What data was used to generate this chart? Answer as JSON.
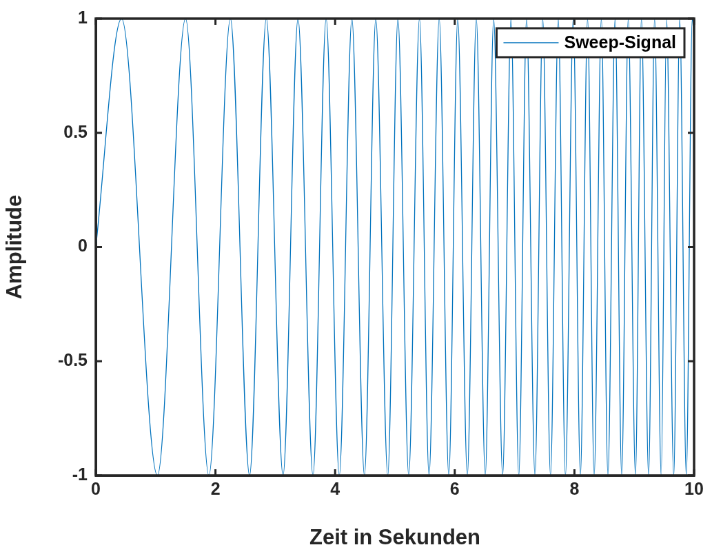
{
  "chart_data": {
    "type": "line",
    "xlabel": "Zeit in Sekunden",
    "ylabel": "Amplitude",
    "xlim": [
      0,
      10
    ],
    "xticks": [
      0,
      2,
      4,
      6,
      8,
      10
    ],
    "ylim": [
      -1,
      1
    ],
    "yticks": [
      -1,
      -0.5,
      0,
      0.5,
      1
    ],
    "grid": false,
    "legend": "top right",
    "marker": "none",
    "line_style": "solid",
    "series": [
      {
        "name": "Sweep-Signal",
        "color": "#0072bd",
        "x": [
          0,
          0.43,
          1.03,
          1.5,
          1.89,
          2.25,
          2.57,
          2.85,
          3.13,
          3.38,
          3.63,
          3.85,
          4.07,
          4.28,
          4.49,
          4.68,
          4.88,
          5.05,
          5.23,
          5.41,
          5.57,
          5.74,
          5.9,
          6.05,
          6.21,
          6.36,
          6.51,
          6.65,
          6.8,
          6.94,
          7.07,
          7.2,
          7.34,
          7.47,
          7.6,
          7.73,
          7.85,
          7.98,
          8.1,
          8.22,
          8.33,
          8.45,
          8.56,
          8.68,
          8.79,
          8.9,
          9.02,
          9.12,
          9.24,
          9.34,
          9.45,
          9.54,
          9.66,
          9.76,
          9.87,
          9.97,
          10
        ],
        "values": [
          0,
          1,
          -1,
          1,
          -1,
          1,
          -1,
          1,
          -1,
          1,
          -1,
          1,
          -1,
          1,
          -1,
          1,
          -1,
          1,
          -1,
          1,
          -1,
          1,
          -1,
          1,
          -1,
          1,
          -1,
          1,
          -1,
          1,
          -1,
          1,
          -1,
          1,
          -1,
          1,
          -1,
          1,
          -1,
          1,
          -1,
          1,
          -1,
          1,
          -1,
          1,
          -1,
          1,
          -1,
          1,
          -1,
          1,
          -1,
          1,
          -1,
          1,
          0.9
        ]
      }
    ]
  }
}
